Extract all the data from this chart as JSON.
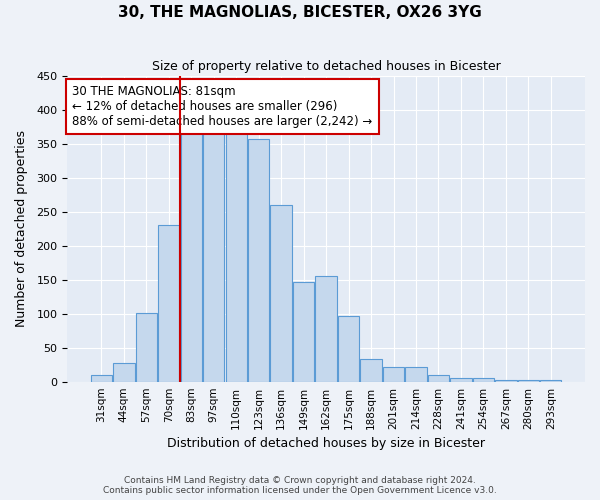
{
  "title": "30, THE MAGNOLIAS, BICESTER, OX26 3YG",
  "subtitle": "Size of property relative to detached houses in Bicester",
  "xlabel": "Distribution of detached houses by size in Bicester",
  "ylabel": "Number of detached properties",
  "bar_labels": [
    "31sqm",
    "44sqm",
    "57sqm",
    "70sqm",
    "83sqm",
    "97sqm",
    "110sqm",
    "123sqm",
    "136sqm",
    "149sqm",
    "162sqm",
    "175sqm",
    "188sqm",
    "201sqm",
    "214sqm",
    "228sqm",
    "241sqm",
    "254sqm",
    "267sqm",
    "280sqm",
    "293sqm"
  ],
  "bar_values": [
    10,
    27,
    101,
    230,
    365,
    370,
    375,
    357,
    260,
    147,
    155,
    96,
    34,
    22,
    22,
    10,
    6,
    5,
    2,
    3,
    2
  ],
  "bar_color": "#c5d8ed",
  "bar_edge_color": "#5b9bd5",
  "ylim": [
    0,
    450
  ],
  "yticks": [
    0,
    50,
    100,
    150,
    200,
    250,
    300,
    350,
    400,
    450
  ],
  "vline_x": 4,
  "vline_color": "#cc0000",
  "annotation_title": "30 THE MAGNOLIAS: 81sqm",
  "annotation_line1": "← 12% of detached houses are smaller (296)",
  "annotation_line2": "88% of semi-detached houses are larger (2,242) →",
  "annotation_box_color": "#cc0000",
  "footnote1": "Contains HM Land Registry data © Crown copyright and database right 2024.",
  "footnote2": "Contains public sector information licensed under the Open Government Licence v3.0.",
  "bg_color": "#eef2f8",
  "plot_bg_color": "#e4ebf5"
}
